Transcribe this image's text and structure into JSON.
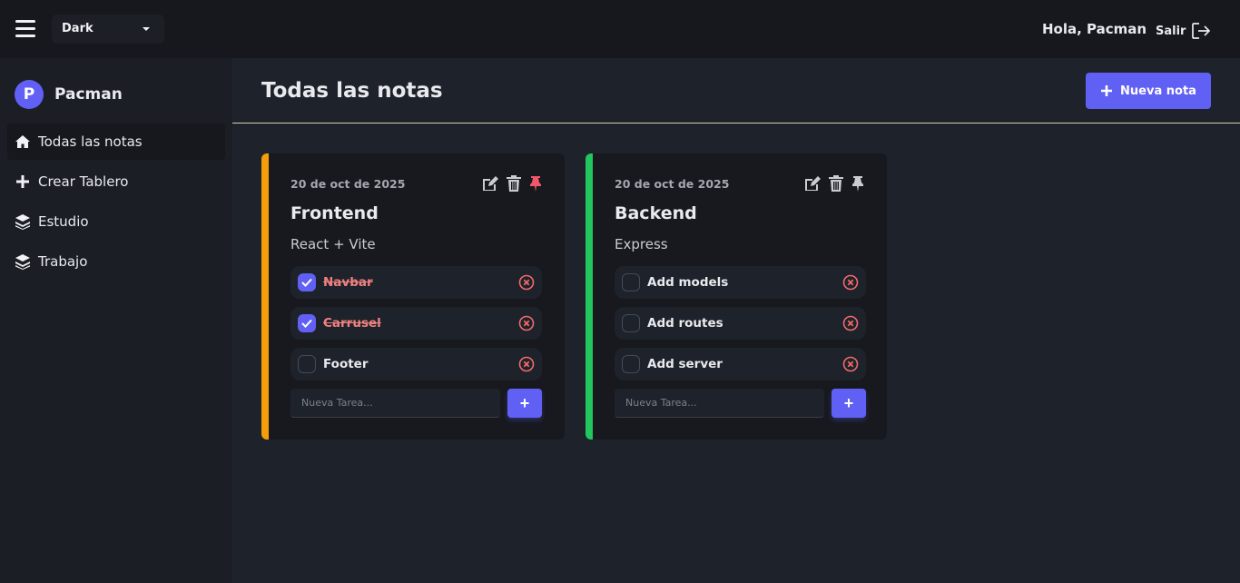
{
  "topbar": {
    "theme": "Dark",
    "greeting": "Hola, Pacman",
    "logout": "Salir"
  },
  "sidebar": {
    "avatar_letter": "P",
    "username": "Pacman",
    "items": [
      {
        "label": "Todas las notas",
        "icon": "home-icon"
      },
      {
        "label": "Crear Tablero",
        "icon": "plus-icon"
      },
      {
        "label": "Estudio",
        "icon": "layers-icon"
      },
      {
        "label": "Trabajo",
        "icon": "layers-icon"
      }
    ]
  },
  "main": {
    "title": "Todas las notas",
    "new_note": "Nueva nota"
  },
  "colors": {
    "accent": "#6160f5",
    "frontend": "#f59e0b",
    "backend": "#22c55e",
    "danger": "#f26b6b"
  },
  "notes": [
    {
      "date": "20 de oct de 2025",
      "title": "Frontend",
      "description": "React + Vite",
      "pinned": true,
      "tasks": [
        {
          "label": "Navbar",
          "done": true
        },
        {
          "label": "Carrusel",
          "done": true
        },
        {
          "label": "Footer",
          "done": false
        }
      ],
      "placeholder": "Nueva Tarea...",
      "add": "+"
    },
    {
      "date": "20 de oct de 2025",
      "title": "Backend",
      "description": "Express",
      "pinned": false,
      "tasks": [
        {
          "label": "Add models",
          "done": false
        },
        {
          "label": "Add routes",
          "done": false
        },
        {
          "label": "Add server",
          "done": false
        }
      ],
      "placeholder": "Nueva Tarea...",
      "add": "+"
    }
  ]
}
